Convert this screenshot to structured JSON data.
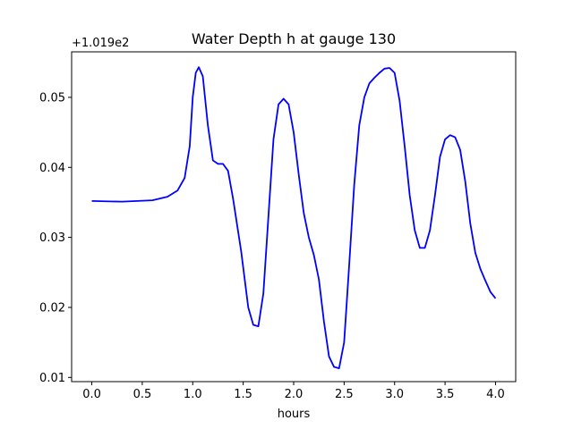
{
  "chart_data": {
    "type": "line",
    "title": "Water Depth h at gauge 130",
    "xlabel": "hours",
    "ylabel": "",
    "y_offset_label": "+1.019e2",
    "xlim": [
      -0.2,
      4.2
    ],
    "ylim": [
      0.0094,
      0.0565
    ],
    "xticks": [
      0.0,
      0.5,
      1.0,
      1.5,
      2.0,
      2.5,
      3.0,
      3.5,
      4.0
    ],
    "xtick_labels": [
      "0.0",
      "0.5",
      "1.0",
      "1.5",
      "2.0",
      "2.5",
      "3.0",
      "3.5",
      "4.0"
    ],
    "yticks": [
      0.01,
      0.02,
      0.03,
      0.04,
      0.05
    ],
    "ytick_labels": [
      "0.01",
      "0.02",
      "0.03",
      "0.04",
      "0.05"
    ],
    "grid": false,
    "series": [
      {
        "color": "#0000ff",
        "x": [
          0.0,
          0.3,
          0.6,
          0.75,
          0.85,
          0.92,
          0.97,
          1.0,
          1.03,
          1.06,
          1.1,
          1.15,
          1.2,
          1.25,
          1.3,
          1.35,
          1.4,
          1.48,
          1.55,
          1.6,
          1.65,
          1.7,
          1.75,
          1.8,
          1.85,
          1.9,
          1.95,
          2.0,
          2.05,
          2.1,
          2.15,
          2.2,
          2.25,
          2.3,
          2.35,
          2.4,
          2.45,
          2.5,
          2.55,
          2.6,
          2.65,
          2.7,
          2.75,
          2.8,
          2.85,
          2.9,
          2.95,
          3.0,
          3.05,
          3.1,
          3.15,
          3.2,
          3.25,
          3.3,
          3.35,
          3.4,
          3.45,
          3.5,
          3.55,
          3.6,
          3.65,
          3.7,
          3.75,
          3.8,
          3.85,
          3.9,
          3.95,
          4.0
        ],
        "y": [
          0.0352,
          0.0351,
          0.0353,
          0.0358,
          0.0367,
          0.0385,
          0.043,
          0.05,
          0.0535,
          0.0543,
          0.053,
          0.046,
          0.041,
          0.0405,
          0.0405,
          0.0395,
          0.0355,
          0.028,
          0.02,
          0.0175,
          0.0173,
          0.022,
          0.033,
          0.044,
          0.049,
          0.0498,
          0.049,
          0.045,
          0.039,
          0.0335,
          0.03,
          0.0275,
          0.024,
          0.018,
          0.013,
          0.0115,
          0.0113,
          0.015,
          0.026,
          0.0375,
          0.046,
          0.05,
          0.052,
          0.0528,
          0.0535,
          0.0541,
          0.0542,
          0.0535,
          0.0495,
          0.043,
          0.036,
          0.031,
          0.0285,
          0.0285,
          0.031,
          0.036,
          0.0415,
          0.044,
          0.0446,
          0.0443,
          0.0425,
          0.038,
          0.032,
          0.0278,
          0.0255,
          0.0238,
          0.0222,
          0.0213
        ]
      }
    ]
  }
}
